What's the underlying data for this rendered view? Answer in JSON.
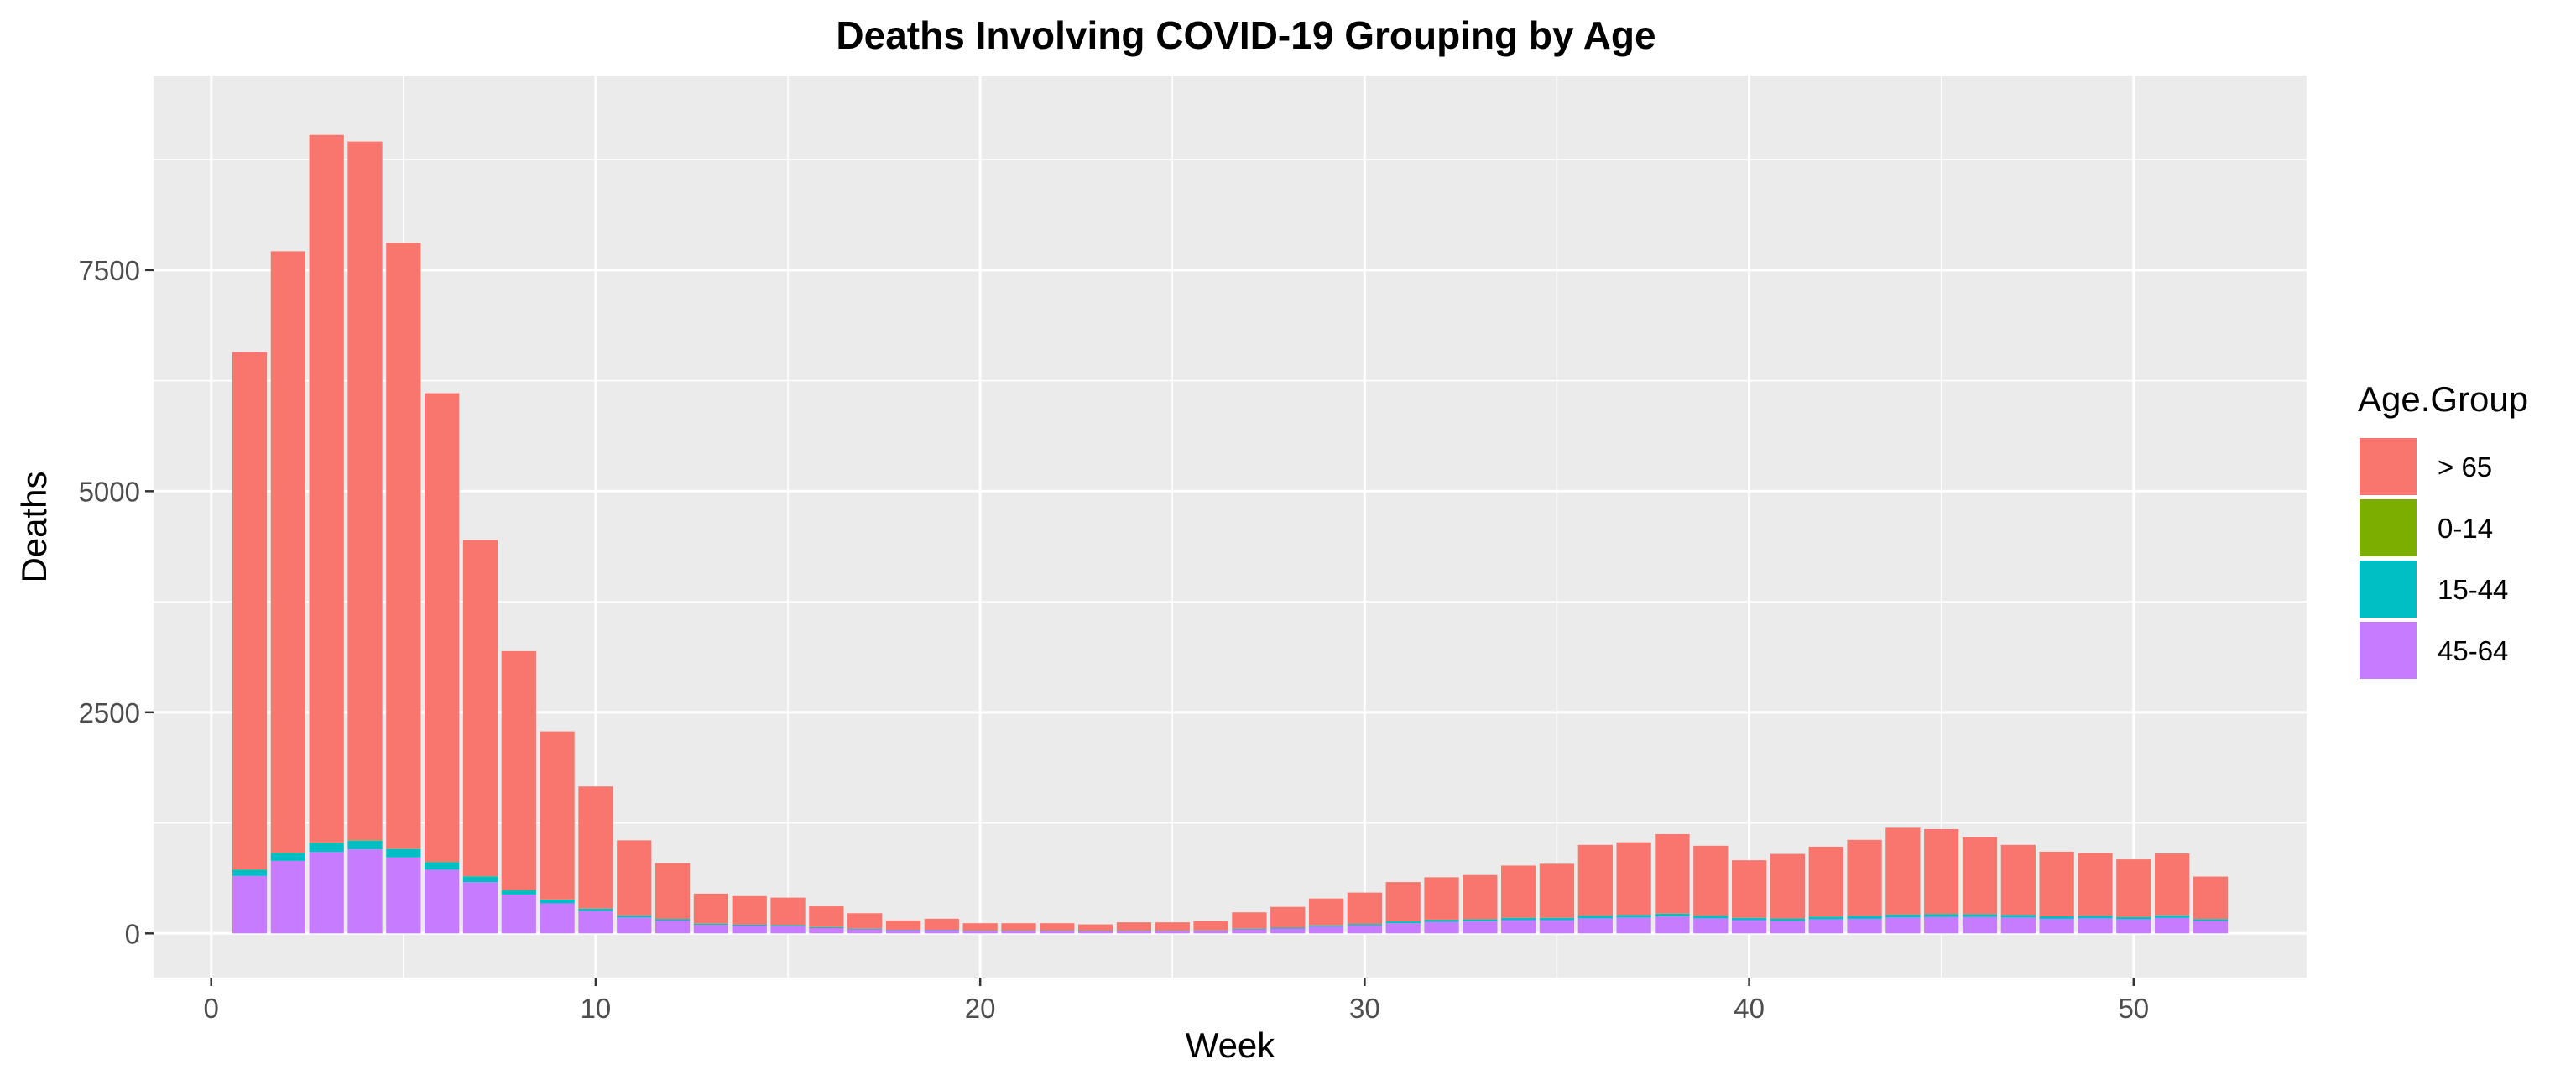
{
  "chart_data": {
    "type": "bar",
    "stacked": true,
    "title": "Deaths Involving COVID-19 Grouping by Age",
    "xlabel": "Week",
    "ylabel": "Deaths",
    "xlim": [
      -1.5,
      54.5
    ],
    "ylim": [
      -500,
      9700
    ],
    "xticks": [
      0,
      10,
      20,
      30,
      40,
      50
    ],
    "yticks": [
      0,
      2500,
      5000,
      7500
    ],
    "grid": true,
    "legend": {
      "title": "Age.Group",
      "position": "right"
    },
    "series_order_bottom_to_top": [
      "45-64",
      "15-44",
      "0-14",
      "> 65"
    ],
    "series": [
      {
        "name": "> 65",
        "color": "#F8766D",
        "values": [
          5850,
          6800,
          8000,
          7900,
          6850,
          5300,
          3800,
          2700,
          1900,
          1380,
          850,
          630,
          340,
          320,
          310,
          235,
          175,
          105,
          125,
          85,
          85,
          85,
          75,
          95,
          95,
          105,
          185,
          235,
          305,
          355,
          445,
          480,
          500,
          590,
          610,
          800,
          820,
          900,
          790,
          650,
          730,
          790,
          860,
          980,
          960,
          870,
          790,
          730,
          710,
          650,
          700,
          480
        ]
      },
      {
        "name": "0-14",
        "color": "#7CAE00",
        "values": [
          3,
          3,
          4,
          4,
          3,
          3,
          2,
          2,
          2,
          1,
          1,
          1,
          1,
          1,
          1,
          1,
          0,
          0,
          0,
          0,
          0,
          0,
          0,
          0,
          0,
          0,
          0,
          0,
          1,
          1,
          1,
          1,
          1,
          1,
          1,
          1,
          1,
          1,
          1,
          1,
          1,
          1,
          1,
          1,
          1,
          1,
          1,
          1,
          1,
          1,
          1,
          1
        ]
      },
      {
        "name": "15-44",
        "color": "#00BFC4",
        "values": [
          70,
          90,
          105,
          100,
          95,
          85,
          65,
          50,
          42,
          30,
          22,
          18,
          14,
          13,
          12,
          10,
          8,
          6,
          6,
          5,
          5,
          5,
          5,
          5,
          5,
          5,
          8,
          10,
          14,
          16,
          20,
          24,
          24,
          26,
          26,
          30,
          30,
          32,
          30,
          26,
          28,
          30,
          32,
          34,
          34,
          32,
          30,
          28,
          28,
          26,
          28,
          22
        ]
      },
      {
        "name": "45-64",
        "color": "#C77CFF",
        "values": [
          650,
          820,
          920,
          950,
          860,
          720,
          580,
          440,
          340,
          250,
          180,
          145,
          95,
          88,
          82,
          60,
          45,
          35,
          35,
          25,
          25,
          25,
          22,
          25,
          25,
          28,
          45,
          55,
          75,
          90,
          115,
          130,
          135,
          150,
          150,
          170,
          180,
          190,
          170,
          150,
          140,
          160,
          165,
          180,
          185,
          185,
          180,
          165,
          170,
          160,
          175,
          140
        ]
      }
    ]
  }
}
